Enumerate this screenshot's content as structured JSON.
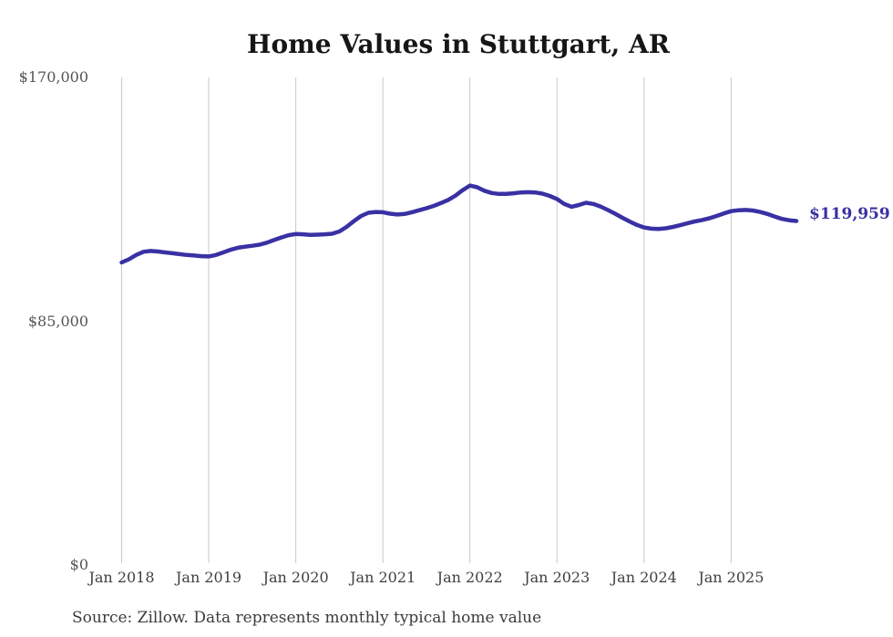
{
  "title": "Home Values in Stuttgart, AR",
  "end_label": "$119,959",
  "source_note": "Source: Zillow. Data represents monthly typical home value",
  "colors": {
    "line": "#3931a3",
    "end_label": "#3931a3",
    "grid": "#c9c9c9",
    "title": "#161616",
    "y_tick": "#545454",
    "x_tick": "#3f3f3f",
    "source": "#3b3b3b",
    "background": "#ffffff"
  },
  "y_axis": {
    "ticks": [
      {
        "label": "$170,000",
        "value": 170000
      },
      {
        "label": "$85,000",
        "value": 85000
      },
      {
        "label": "$0",
        "value": 0
      }
    ]
  },
  "x_axis": {
    "ticks": [
      "Jan 2018",
      "Jan 2019",
      "Jan 2020",
      "Jan 2021",
      "Jan 2022",
      "Jan 2023",
      "Jan 2024",
      "Jan 2025"
    ]
  },
  "chart_data": {
    "type": "line",
    "title": "Home Values in Stuttgart, AR",
    "series_name": "Typical home value (monthly)",
    "unit": "USD",
    "interval": "monthly",
    "x_start": "Jan 2018",
    "x_end": "Oct 2025",
    "x_tick_labels": [
      "Jan 2018",
      "Jan 2019",
      "Jan 2020",
      "Jan 2021",
      "Jan 2022",
      "Jan 2023",
      "Jan 2024",
      "Jan 2025"
    ],
    "ylim": [
      0,
      170000
    ],
    "y_tick_labels": [
      "$0",
      "$85,000",
      "$170,000"
    ],
    "grid": "vertical-only",
    "legend": "none",
    "latest_value": 119959,
    "latest_value_label": "$119,959",
    "values": [
      105500,
      106600,
      108100,
      109200,
      109500,
      109300,
      109000,
      108700,
      108400,
      108100,
      107900,
      107700,
      107600,
      108100,
      109000,
      109900,
      110600,
      111000,
      111300,
      111700,
      112400,
      113300,
      114200,
      115000,
      115400,
      115300,
      115100,
      115200,
      115300,
      115500,
      116300,
      117900,
      119900,
      121700,
      122800,
      123100,
      123000,
      122500,
      122200,
      122400,
      123000,
      123700,
      124400,
      125200,
      126200,
      127300,
      128800,
      130700,
      132300,
      131700,
      130500,
      129700,
      129400,
      129400,
      129600,
      129900,
      130000,
      129900,
      129500,
      128700,
      127600,
      125900,
      124900,
      125500,
      126300,
      125900,
      125000,
      123800,
      122500,
      121100,
      119800,
      118600,
      117700,
      117300,
      117200,
      117400,
      117900,
      118500,
      119200,
      119800,
      120300,
      120900,
      121700,
      122600,
      123400,
      123700,
      123800,
      123600,
      123100,
      122400,
      121500,
      120700,
      120200,
      119959
    ]
  }
}
